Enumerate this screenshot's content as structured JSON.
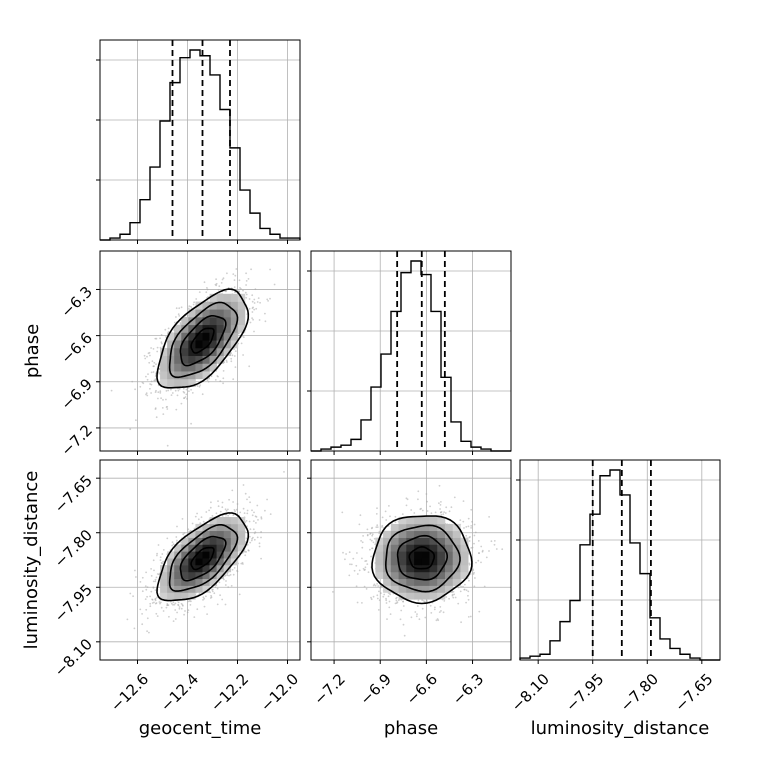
{
  "chart_data": {
    "type": "corner",
    "parameters": [
      {
        "label": "geocent_time",
        "range": [
          -12.75,
          -11.95
        ],
        "ticks": [
          -12.6,
          -12.4,
          -12.2,
          -12.0
        ],
        "tick_labels": [
          "−12.6",
          "−12.4",
          "−12.2",
          "−12.0"
        ],
        "quantiles": [
          -12.46,
          -12.34,
          -12.23
        ],
        "histogram": {
          "bin_edges": [
            -12.75,
            -12.71,
            -12.67,
            -12.63,
            -12.59,
            -12.55,
            -12.51,
            -12.47,
            -12.43,
            -12.39,
            -12.35,
            -12.31,
            -12.27,
            -12.23,
            -12.19,
            -12.15,
            -12.11,
            -12.07,
            -12.03,
            -11.99,
            -11.95
          ],
          "heights": [
            0,
            1,
            3,
            9,
            21,
            38,
            62,
            82,
            95,
            99,
            96,
            86,
            68,
            48,
            26,
            14,
            6,
            3,
            1,
            1
          ]
        }
      },
      {
        "label": "phase",
        "range": [
          -7.35,
          -6.05
        ],
        "ticks": [
          -7.2,
          -6.9,
          -6.6,
          -6.3
        ],
        "tick_labels": [
          "−7.2",
          "−6.9",
          "−6.6",
          "−6.3"
        ],
        "quantiles": [
          -6.79,
          -6.63,
          -6.48
        ],
        "histogram": {
          "bin_edges": [
            -7.35,
            -7.285,
            -7.22,
            -7.155,
            -7.09,
            -7.025,
            -6.96,
            -6.895,
            -6.83,
            -6.765,
            -6.7,
            -6.635,
            -6.57,
            -6.505,
            -6.44,
            -6.375,
            -6.31,
            -6.245,
            -6.18,
            -6.115,
            -6.05
          ],
          "heights": [
            0,
            1,
            2,
            3,
            6,
            16,
            33,
            50,
            72,
            92,
            98,
            91,
            72,
            38,
            15,
            5,
            2,
            1,
            0,
            0
          ]
        }
      },
      {
        "label": "luminosity_distance",
        "range": [
          -8.15,
          -7.6
        ],
        "ticks": [
          -8.1,
          -7.95,
          -7.8,
          -7.65
        ],
        "tick_labels": [
          "−8.10",
          "−7.95",
          "−7.80",
          "−7.65"
        ],
        "quantiles": [
          -7.95,
          -7.87,
          -7.79
        ],
        "histogram": {
          "bin_edges": [
            -8.15,
            -8.1225,
            -8.095,
            -8.0675,
            -8.04,
            -8.0125,
            -7.985,
            -7.9575,
            -7.93,
            -7.9025,
            -7.875,
            -7.8475,
            -7.82,
            -7.7925,
            -7.765,
            -7.7375,
            -7.71,
            -7.6825,
            -7.655,
            -7.6275,
            -7.6
          ],
          "heights": [
            1,
            2,
            3,
            10,
            20,
            31,
            60,
            76,
            96,
            99,
            86,
            61,
            45,
            22,
            11,
            6,
            3,
            1,
            0,
            0
          ]
        }
      }
    ],
    "pairs": [
      {
        "row": 1,
        "col": 0,
        "center": [
          -12.34,
          -6.63
        ],
        "spread": [
          0.09,
          0.16
        ],
        "correlation": 0.6,
        "contour_sigmas": [
          0.5,
          1.0,
          1.5,
          2.0
        ]
      },
      {
        "row": 2,
        "col": 0,
        "center": [
          -12.34,
          -7.87
        ],
        "spread": [
          0.09,
          0.06
        ],
        "correlation": 0.62,
        "contour_sigmas": [
          0.5,
          1.0,
          1.5,
          2.0
        ]
      },
      {
        "row": 2,
        "col": 1,
        "center": [
          -6.63,
          -7.87
        ],
        "spread": [
          0.16,
          0.06
        ],
        "correlation": 0.02,
        "contour_sigmas": [
          0.5,
          1.0,
          1.5,
          2.0
        ]
      }
    ],
    "grid": true,
    "colors": {
      "line": "#000000",
      "grid": "#b0b0b0",
      "scatter": "#a8a8a8"
    }
  }
}
